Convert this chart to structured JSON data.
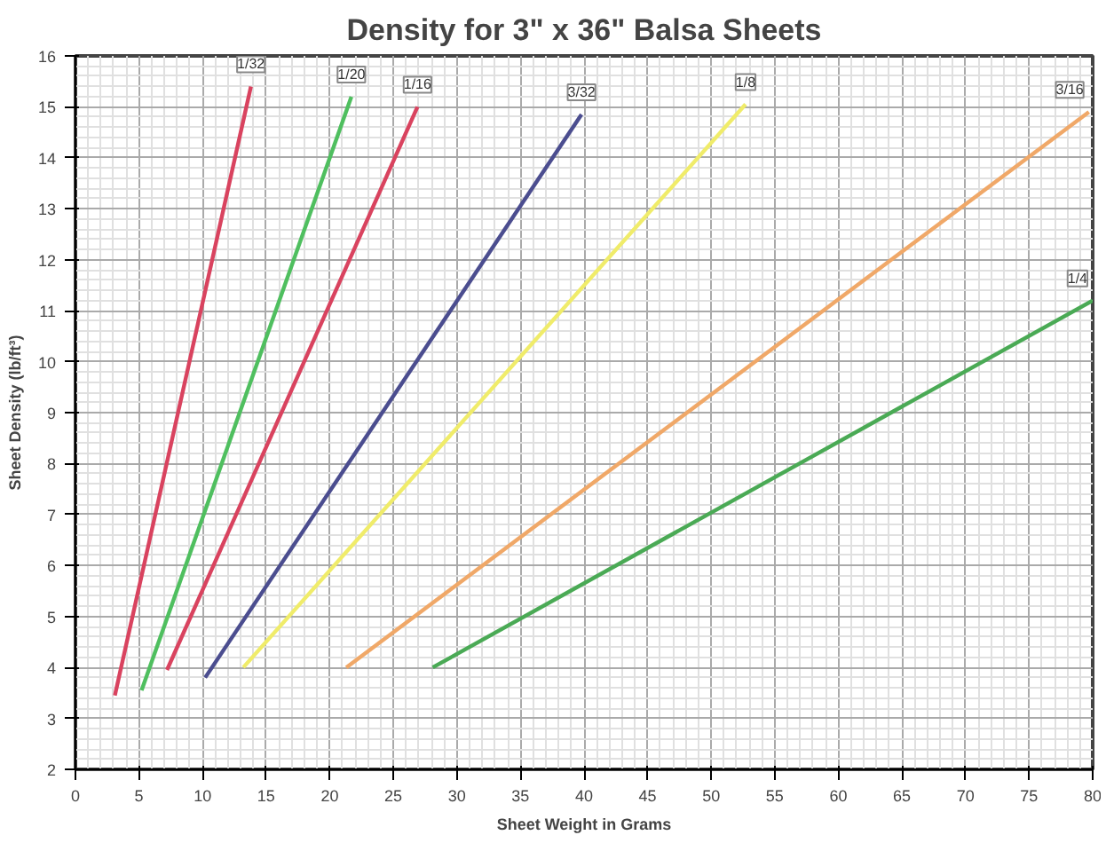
{
  "chart_data": {
    "type": "line",
    "title": "Density for 3\" x 36\" Balsa Sheets",
    "xlabel": "Sheet Weight in Grams",
    "ylabel": "Sheet Density (lb/ft³)",
    "xlim": [
      0,
      80
    ],
    "ylim": [
      2,
      16
    ],
    "xticks": [
      0,
      5,
      10,
      15,
      20,
      25,
      30,
      35,
      40,
      45,
      50,
      55,
      60,
      65,
      70,
      75,
      80
    ],
    "yticks": [
      2,
      3,
      4,
      5,
      6,
      7,
      8,
      9,
      10,
      11,
      12,
      13,
      14,
      15,
      16
    ],
    "grid": true,
    "marker": "none",
    "line_style": "solid",
    "series": [
      {
        "name": "1/32",
        "color": "#d9435f",
        "x": [
          3.1,
          13.8
        ],
        "values": [
          3.45,
          15.4
        ]
      },
      {
        "name": "1/20",
        "color": "#4fbf5f",
        "x": [
          5.2,
          21.7
        ],
        "values": [
          3.55,
          15.2
        ]
      },
      {
        "name": "1/16",
        "color": "#d9435f",
        "x": [
          7.2,
          26.9
        ],
        "values": [
          3.95,
          15.0
        ]
      },
      {
        "name": "3/32",
        "color": "#4b4d8f",
        "x": [
          10.2,
          39.8
        ],
        "values": [
          3.8,
          14.85
        ]
      },
      {
        "name": "1/8",
        "color": "#f0ec6a",
        "x": [
          13.2,
          52.7
        ],
        "values": [
          4.0,
          15.05
        ]
      },
      {
        "name": "3/16",
        "color": "#f0a868",
        "x": [
          21.3,
          79.7
        ],
        "values": [
          4.0,
          14.9
        ]
      },
      {
        "name": "1/4",
        "color": "#4aaa55",
        "x": [
          28.1,
          80
        ],
        "values": [
          4.0,
          11.2
        ]
      }
    ]
  }
}
